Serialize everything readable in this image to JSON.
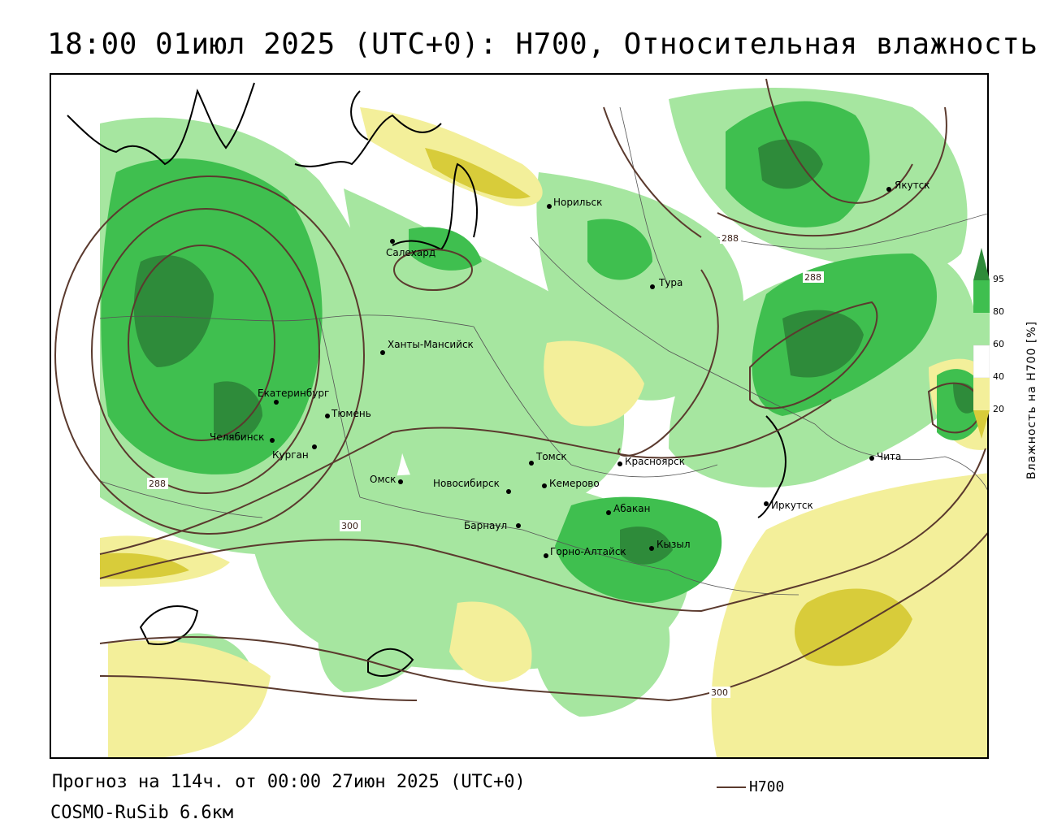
{
  "header": {
    "title": "18:00 01июл 2025 (UTC+0): H700, Относительная влажность"
  },
  "map": {
    "cities": [
      {
        "name": "Якутск"
      },
      {
        "name": "Норильск"
      },
      {
        "name": "Салехард"
      },
      {
        "name": "Тура"
      },
      {
        "name": "Ханты-Мансийск"
      },
      {
        "name": "Екатеринбург"
      },
      {
        "name": "Тюмень"
      },
      {
        "name": "Челябинск"
      },
      {
        "name": "Курган"
      },
      {
        "name": "Омск"
      },
      {
        "name": "Новосибирск"
      },
      {
        "name": "Томск"
      },
      {
        "name": "Кемерово"
      },
      {
        "name": "Красноярск"
      },
      {
        "name": "Абакан"
      },
      {
        "name": "Барнаул"
      },
      {
        "name": "Горно-Алтайск"
      },
      {
        "name": "Кызыл"
      },
      {
        "name": "Иркутск"
      },
      {
        "name": "Чита"
      }
    ],
    "isoline_labels": [
      "288",
      "288",
      "288",
      "300",
      "300"
    ]
  },
  "colorbar": {
    "title": "Влажность на H700 [%]",
    "ticks": [
      "95",
      "80",
      "60",
      "40",
      "20"
    ],
    "colors": {
      "c95": "#2e8b3a",
      "c80": "#3fbf4f",
      "c60": "#a6e6a0",
      "c40": "#ffffff",
      "c20": "#f3ef9a",
      "c0": "#d8cc3a"
    }
  },
  "legend": {
    "line_label": "H700",
    "line_color": "#5b3a2e"
  },
  "footer": {
    "forecast": "Прогноз на 114ч. от 00:00 27июн 2025 (UTC+0)",
    "model": "COSMO-RuSib 6.6км"
  }
}
